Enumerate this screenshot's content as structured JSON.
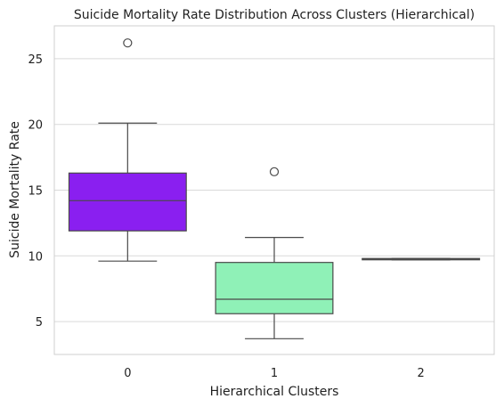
{
  "chart_data": {
    "type": "boxplot",
    "title": "Suicide Mortality Rate Distribution Across Clusters (Hierarchical)",
    "xlabel": "Hierarchical Clusters",
    "ylabel": "Suicide Mortality Rate",
    "categories": [
      "0",
      "1",
      "2"
    ],
    "ylim": [
      2.5,
      27.5
    ],
    "yticks": [
      5,
      10,
      15,
      20,
      25
    ],
    "grid": true,
    "boxes": [
      {
        "category": "0",
        "whisker_low": 9.6,
        "q1": 11.9,
        "median": 14.2,
        "q3": 16.3,
        "whisker_high": 20.1,
        "outliers": [
          26.2
        ],
        "color": "#8a1ff0"
      },
      {
        "category": "1",
        "whisker_low": 3.7,
        "q1": 5.6,
        "median": 6.7,
        "q3": 9.5,
        "whisker_high": 11.4,
        "outliers": [
          16.4
        ],
        "color": "#8ff1b7"
      },
      {
        "category": "2",
        "whisker_low": 9.7,
        "q1": 9.7,
        "median": 9.75,
        "q3": 9.8,
        "whisker_high": 9.8,
        "outliers": [],
        "color": "#c6e6a8"
      }
    ]
  }
}
